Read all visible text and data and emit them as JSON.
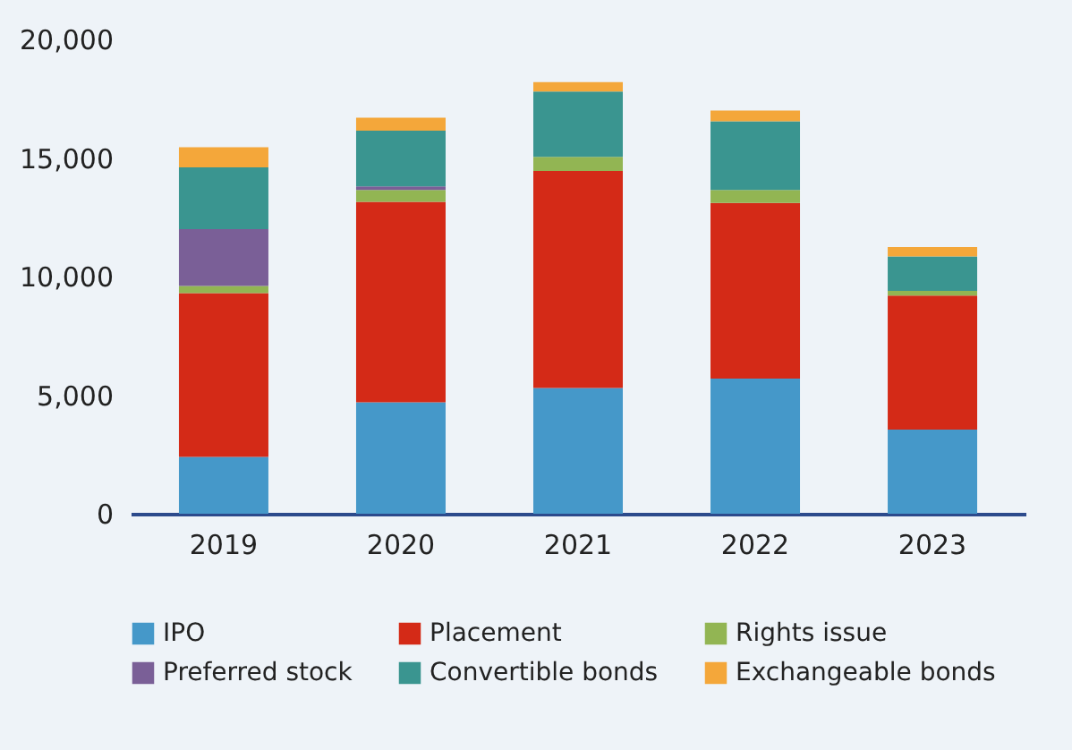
{
  "chart_data": {
    "type": "bar",
    "stacked": true,
    "categories": [
      "2019",
      "2020",
      "2021",
      "2022",
      "2023"
    ],
    "series": [
      {
        "name": "IPO",
        "color": "#4598c9",
        "values": [
          2400,
          4700,
          5300,
          5700,
          3550
        ]
      },
      {
        "name": "Placement",
        "color": "#d42a17",
        "values": [
          6900,
          8450,
          9150,
          7400,
          5650
        ]
      },
      {
        "name": "Rights issue",
        "color": "#92b553",
        "values": [
          300,
          500,
          600,
          550,
          200
        ]
      },
      {
        "name": "Preferred stock",
        "color": "#7a5f97",
        "values": [
          2400,
          150,
          0,
          0,
          0
        ]
      },
      {
        "name": "Convertible bonds",
        "color": "#3a9590",
        "values": [
          2600,
          2350,
          2750,
          2900,
          1450
        ]
      },
      {
        "name": "Exchangeable bonds",
        "color": "#f4a73a",
        "values": [
          850,
          550,
          400,
          450,
          400
        ]
      }
    ],
    "ylim": [
      0,
      20000
    ],
    "yticks": [
      {
        "value": 0,
        "label": "0"
      },
      {
        "value": 5000,
        "label": "5,000"
      },
      {
        "value": 10000,
        "label": "10,000"
      },
      {
        "value": 15000,
        "label": "15,000"
      },
      {
        "value": 20000,
        "label": "20,000"
      }
    ],
    "grid": false,
    "legend": "bottom"
  }
}
